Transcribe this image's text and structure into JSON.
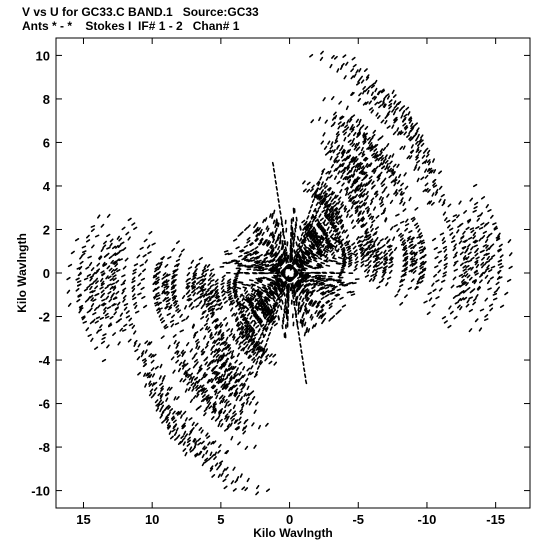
{
  "header": {
    "line1": "V vs U for GC33.C BAND.1   Source:GC33",
    "line2": "Ants * - *    Stokes I  IF# 1 - 2   Chan# 1"
  },
  "chart_data": {
    "type": "scatter",
    "title": "V vs U for GC33.C BAND.1   Source:GC33",
    "subtitle": "Ants * - *    Stokes I  IF# 1 - 2   Chan# 1",
    "xlabel": "Kilo Wavlngth",
    "ylabel": "Kilo Wavlngth",
    "xlim": [
      17,
      -17.5
    ],
    "ylim": [
      -10.8,
      10.8
    ],
    "x_reversed": true,
    "xticks": [
      15,
      10,
      5,
      0,
      -5,
      -10,
      -15
    ],
    "xtick_labels": [
      "15",
      "10",
      "5",
      "0",
      "-5",
      "-10",
      "-15"
    ],
    "yticks": [
      10,
      8,
      6,
      4,
      2,
      0,
      -2,
      -4,
      -6,
      -8,
      -10
    ],
    "ytick_labels": [
      "10",
      "8",
      "6",
      "4",
      "2",
      "0",
      "-2",
      "-4",
      "-6",
      "-8",
      "-10"
    ],
    "grid": false,
    "marker_color": "#000000",
    "track_groups": [
      {
        "name": "core-spokes",
        "count": 70,
        "r_min": 0.3,
        "r_max": 2.6,
        "band": 0.25
      },
      {
        "name": "diagonal-lobe",
        "count": 80,
        "r_min": 2.0,
        "r_max": 10.5,
        "band": 0.55
      },
      {
        "name": "horizontal-lobe",
        "count": 60,
        "r_min": 2.0,
        "r_max": 8.5,
        "band": 0.45
      }
    ],
    "note_points": "Each track is a short dashed arc of (u,v) samples and is mirrored through the origin (-u,-v)."
  }
}
